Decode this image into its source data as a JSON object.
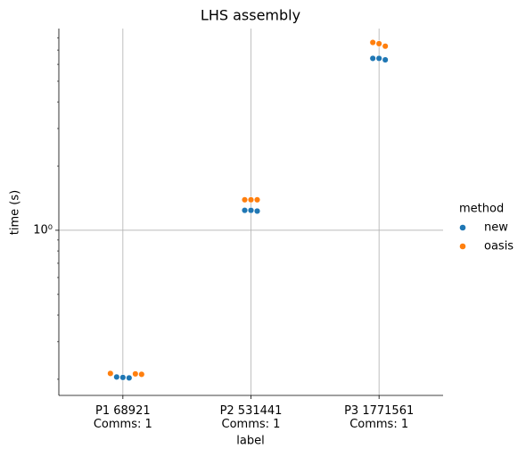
{
  "chart_data": {
    "type": "swarm",
    "title": "LHS assembly",
    "x_label": "label",
    "y_label": "time (s)",
    "log_y": true,
    "grid": true,
    "categories": [
      "P1 68921\nComms: 1",
      "P2 531441\nComms: 1",
      "P3 1771561\nComms: 1"
    ],
    "series": [
      {
        "name": "new",
        "color": "#1f77b4",
        "values": [
          [
            0.204,
            0.203,
            0.205
          ],
          [
            1.24,
            1.23,
            1.24
          ],
          [
            6.4,
            6.3,
            6.4
          ]
        ]
      },
      {
        "name": "oasis",
        "color": "#ff7f0e",
        "values": [
          [
            0.212,
            0.213,
            0.211
          ],
          [
            1.39,
            1.39,
            1.39
          ],
          [
            7.5,
            7.3,
            7.6
          ]
        ]
      }
    ],
    "ylim": [
      0.168,
      8.83
    ],
    "yticks": [
      {
        "value": 1,
        "label": "10⁰"
      }
    ],
    "yticks_minor": [
      0.2,
      0.3,
      0.4,
      0.5,
      0.6,
      0.7,
      0.8,
      0.9,
      2,
      3,
      4,
      5,
      6,
      7,
      8
    ],
    "legend_title": "method",
    "legend_position": "right"
  }
}
